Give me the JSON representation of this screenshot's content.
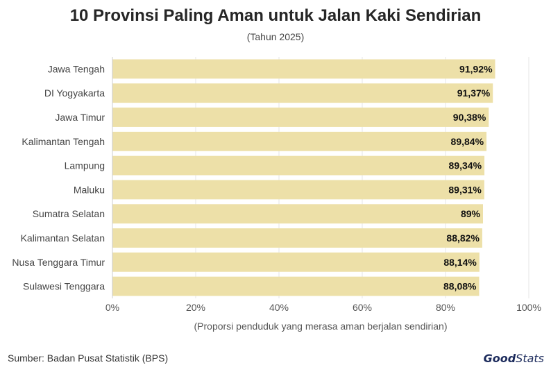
{
  "title": "10 Provinsi Paling Aman untuk Jalan Kaki Sendirian",
  "subtitle": "(Tahun 2025)",
  "source": "Sumber: Badan Pusat Statistik (BPS)",
  "logo": {
    "part1": "Good",
    "part2": "Stats"
  },
  "colors": {
    "bar": "#ede0a8",
    "grid": "#e6e6e6",
    "text": "#333333"
  },
  "chart_data": {
    "type": "bar",
    "orientation": "horizontal",
    "title": "10 Provinsi Paling Aman untuk Jalan Kaki Sendirian",
    "subtitle": "(Tahun 2025)",
    "xlabel": "(Proporsi penduduk yang merasa aman berjalan sendirian)",
    "ylabel": "",
    "xlim": [
      0,
      100
    ],
    "grid": true,
    "categories": [
      "Jawa Tengah",
      "DI Yogyakarta",
      "Jawa Timur",
      "Kalimantan Tengah",
      "Lampung",
      "Maluku",
      "Sumatra Selatan",
      "Kalimantan Selatan",
      "Nusa Tenggara Timur",
      "Sulawesi Tenggara"
    ],
    "values": [
      91.92,
      91.37,
      90.38,
      89.84,
      89.34,
      89.31,
      89,
      88.82,
      88.14,
      88.08
    ],
    "value_labels": [
      "91,92%",
      "91,37%",
      "90,38%",
      "89,84%",
      "89,34%",
      "89,31%",
      "89%",
      "88,82%",
      "88,14%",
      "88,08%"
    ],
    "x_ticks": [
      0,
      20,
      40,
      60,
      80,
      100
    ],
    "x_tick_labels": [
      "0%",
      "20%",
      "40%",
      "60%",
      "80%",
      "100%"
    ]
  }
}
